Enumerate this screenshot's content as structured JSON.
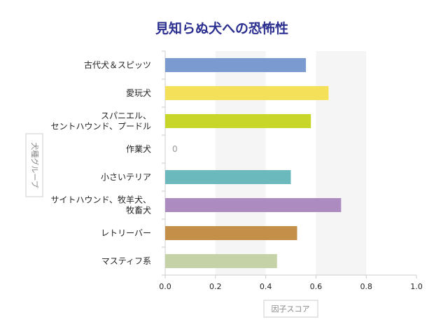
{
  "chart_data": {
    "type": "bar",
    "orientation": "horizontal",
    "title": "見知らぬ犬への恐怖性",
    "xlabel": "因子スコア",
    "ylabel": "犬種グループ",
    "xlim": [
      0,
      1
    ],
    "xticks": [
      "0.0",
      "0.2",
      "0.4",
      "0.6",
      "0.8",
      "1.0"
    ],
    "grid": "alternating vertical bands",
    "categories": [
      [
        "古代犬＆スピッツ"
      ],
      [
        "愛玩犬"
      ],
      [
        "スパニエル、",
        "セントハウンド、プードル"
      ],
      [
        "作業犬"
      ],
      [
        "小さいテリア"
      ],
      [
        "サイトハウンド、牧羊犬、",
        "牧畜犬"
      ],
      [
        "レトリーバー"
      ],
      [
        "マスティフ系"
      ]
    ],
    "values": [
      0.56,
      0.65,
      0.58,
      0,
      0.5,
      0.7,
      0.525,
      0.445
    ],
    "zero_label": "0",
    "colors": [
      "#7b9ad0",
      "#f5e05a",
      "#c8d629",
      "#cccccc",
      "#6cb9bd",
      "#ab8bc0",
      "#c48f49",
      "#c5d1a6"
    ],
    "band_color": "#f5f5f5",
    "axis_color": "#cccccc"
  }
}
